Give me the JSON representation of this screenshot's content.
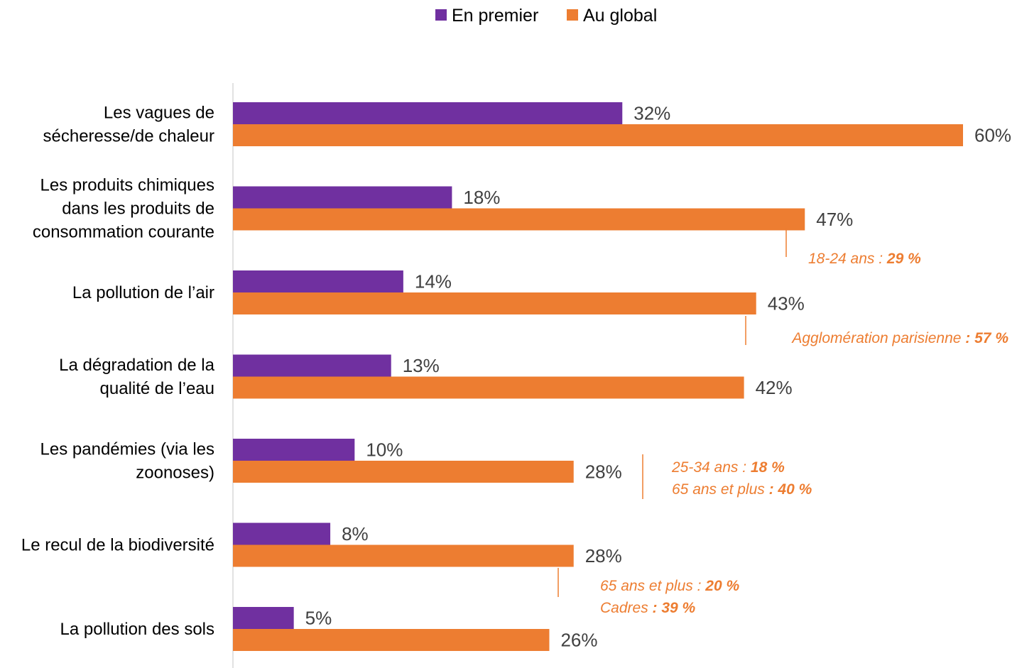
{
  "chart_data": {
    "type": "bar",
    "orientation": "horizontal",
    "categories": [
      [
        "Les vagues de",
        "sécheresse/de chaleur"
      ],
      [
        "Les produits chimiques",
        "dans les produits de",
        "consommation courante"
      ],
      [
        "La pollution de l’air"
      ],
      [
        "La dégradation de la",
        "qualité de l’eau"
      ],
      [
        "Les pandémies (via les",
        "zoonoses)"
      ],
      [
        "Le recul de la biodiversité"
      ],
      [
        "La pollution des sols"
      ]
    ],
    "series": [
      {
        "name": "En premier",
        "color": "#7030A0",
        "values": [
          32,
          18,
          14,
          13,
          10,
          8,
          5
        ]
      },
      {
        "name": "Au global",
        "color": "#ED7D31",
        "values": [
          60,
          47,
          43,
          42,
          28,
          28,
          26
        ]
      }
    ],
    "value_suffix": "%",
    "xlim": [
      0,
      60
    ],
    "grid": false,
    "legend_position": "top",
    "annotations": [
      {
        "category_index": 1,
        "lines": [
          {
            "text": "18-24 ans : ",
            "bold": "29 %"
          }
        ]
      },
      {
        "category_index": 2,
        "lines": [
          {
            "text": "Agglomération parisienne ",
            "bold": ": 57 %"
          }
        ]
      },
      {
        "category_index": 4,
        "lines": [
          {
            "text": "25-34 ans : ",
            "bold": "18 %"
          },
          {
            "text": "65 ans et plus ",
            "bold": ": 40 %"
          }
        ]
      },
      {
        "category_index": 5,
        "lines": [
          {
            "text": "65 ans et plus : ",
            "bold": "20 %"
          },
          {
            "text": "Cadres ",
            "bold": ": 39 %"
          }
        ]
      }
    ],
    "annotation_color": "#ED7D31"
  }
}
